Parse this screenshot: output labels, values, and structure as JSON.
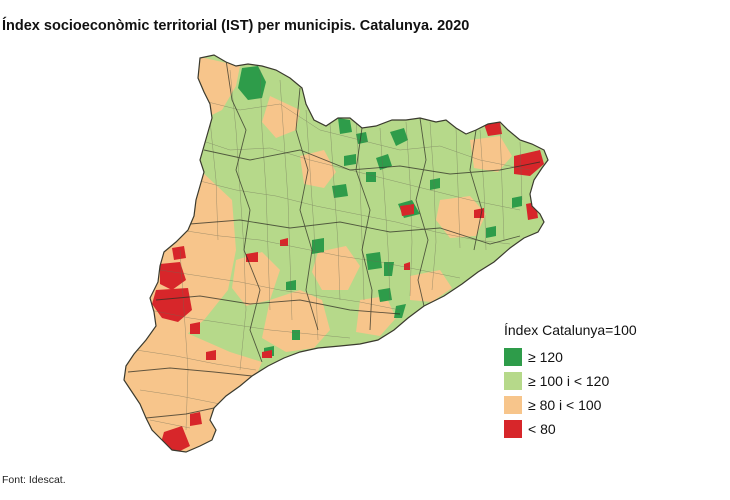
{
  "title": "Índex socioeconòmic territorial (IST) per municipis. Catalunya. 2020",
  "legend": {
    "title": "Índex Catalunya=100",
    "items": [
      {
        "label": "≥ 120",
        "color": "#2e9c4a"
      },
      {
        "label": "≥ 100 i < 120",
        "color": "#b6d98a"
      },
      {
        "label": "≥ 80 i < 100",
        "color": "#f7c58b"
      },
      {
        "label": "< 80",
        "color": "#d7262a"
      }
    ]
  },
  "source": "Font: Idescat.",
  "colors": {
    "boundary": "#6b6b55",
    "comarca_boundary": "#2f2f25"
  }
}
